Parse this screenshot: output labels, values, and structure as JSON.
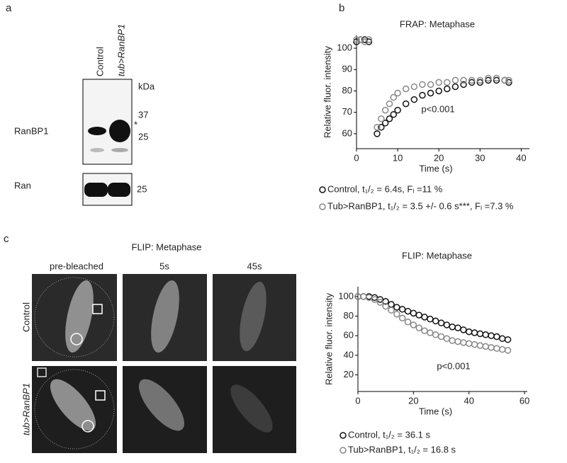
{
  "panels": [
    "a",
    "b",
    "c"
  ],
  "blot": {
    "lanes": [
      "Control",
      "tub>RanBP1"
    ],
    "unit": "kDa",
    "markers": [
      "37",
      "*",
      "25"
    ],
    "proteins": [
      "RanBP1",
      "Ran"
    ],
    "ran_marker": "25"
  },
  "flip_images": {
    "title": "FLIP: Metaphase",
    "columns": [
      "pre-bleached",
      "5s",
      "45s"
    ],
    "rows": [
      "Control",
      "tub>RanBP1"
    ]
  },
  "chart_data": [
    {
      "type": "scatter",
      "title": "FRAP: Metaphase",
      "xlabel": "Time (s)",
      "ylabel": "Relative fluor. intensity",
      "annotation": "p<0.001",
      "x": [
        0,
        1,
        2,
        3,
        5,
        6,
        7,
        8,
        9,
        10,
        12,
        14,
        16,
        18,
        20,
        22,
        24,
        26,
        28,
        30,
        32,
        34,
        36,
        37
      ],
      "series": [
        {
          "name": "Control, t₁/₂ = 6.4s, Fᵢ =11 %",
          "color": "#111111",
          "values": [
            103,
            104,
            104,
            103,
            60,
            63,
            65,
            67,
            69,
            71,
            74,
            76,
            78,
            79,
            80,
            81,
            82,
            83,
            84,
            84,
            85,
            85,
            85,
            84
          ]
        },
        {
          "name": "Tub>RanBP1, t₁/₂ = 3.5 +/- 0.6 s***, Fᵢ =7.3 %",
          "color": "#888888",
          "values": [
            104,
            104,
            103,
            104,
            63,
            67,
            71,
            74,
            77,
            79,
            81,
            82,
            83,
            83,
            84,
            84,
            85,
            85,
            85,
            85,
            86,
            86,
            85,
            85
          ]
        }
      ],
      "xlim": [
        0,
        42
      ],
      "ylim": [
        53,
        106
      ],
      "xticks": [
        0,
        10,
        20,
        30,
        40
      ],
      "yticks": [
        60,
        70,
        80,
        90,
        100
      ]
    },
    {
      "type": "scatter",
      "title": "FLIP: Metaphase",
      "xlabel": "Time (s)",
      "ylabel": "Relative fluor. intensity",
      "annotation": "p<0.001",
      "x": [
        0,
        2,
        4,
        6,
        8,
        10,
        12,
        14,
        16,
        18,
        20,
        22,
        24,
        26,
        28,
        30,
        32,
        34,
        36,
        38,
        40,
        42,
        44,
        46,
        48,
        50,
        52,
        54
      ],
      "series": [
        {
          "name": "Control, t₁/₂ = 36.1 s",
          "color": "#111111",
          "values": [
            100,
            100,
            100,
            99,
            97,
            95,
            92,
            89,
            87,
            85,
            83,
            81,
            79,
            77,
            75,
            73,
            71,
            69,
            68,
            66,
            64,
            63,
            62,
            61,
            60,
            59,
            57,
            56
          ]
        },
        {
          "name": "Tub>RanBP1, t₁/₂ = 16.8 s",
          "color": "#888888",
          "values": [
            100,
            100,
            99,
            97,
            94,
            90,
            86,
            82,
            78,
            74,
            71,
            68,
            65,
            63,
            61,
            59,
            57,
            55,
            54,
            53,
            52,
            51,
            50,
            49,
            48,
            47,
            46,
            45
          ]
        }
      ],
      "xlim": [
        0,
        61
      ],
      "ylim": [
        3,
        110
      ],
      "xticks": [
        0,
        20,
        40,
        60
      ],
      "yticks": [
        20,
        40,
        60,
        80,
        100
      ]
    }
  ]
}
